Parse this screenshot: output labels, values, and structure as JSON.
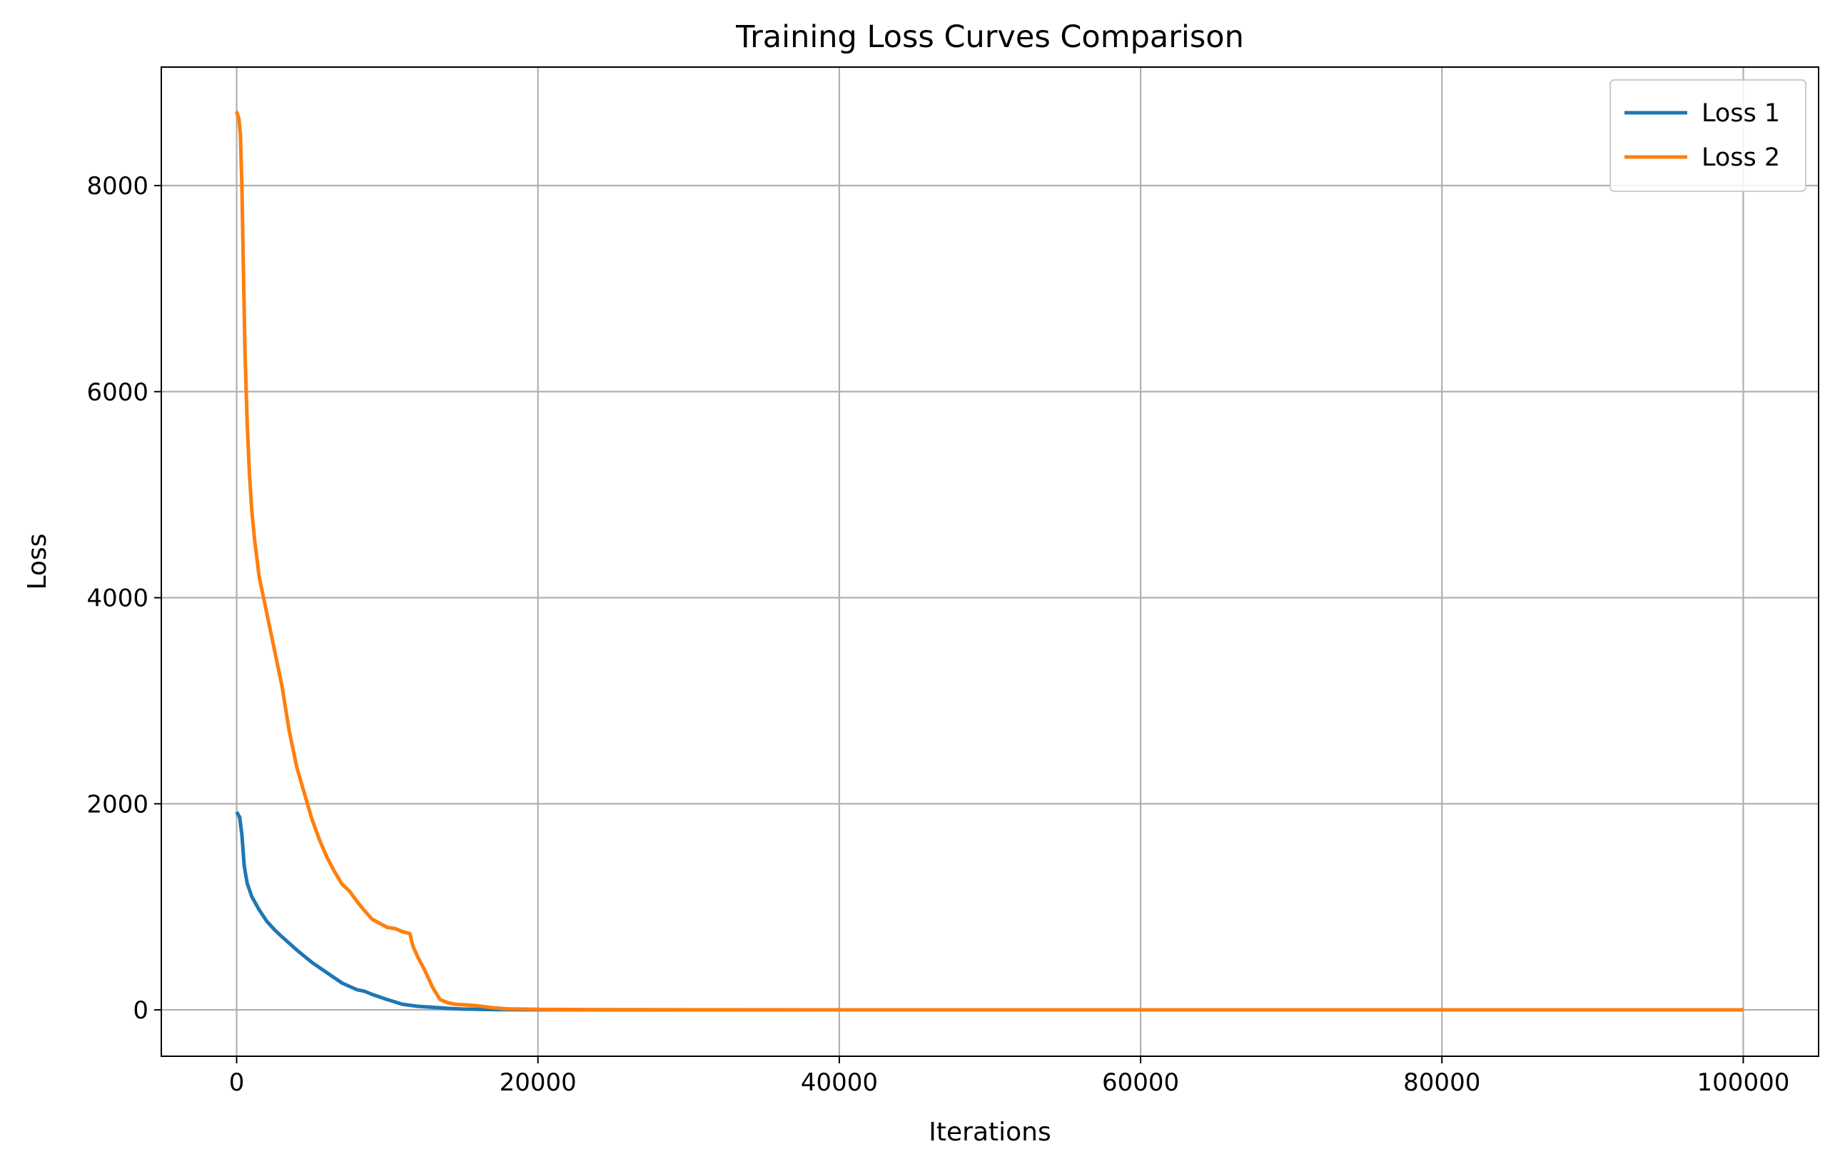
{
  "chart_data": {
    "type": "line",
    "title": "Training Loss Curves Comparison",
    "xlabel": "Iterations",
    "ylabel": "Loss",
    "xlim": [
      -5000,
      105000
    ],
    "ylim": [
      -450,
      9150
    ],
    "xticks": [
      0,
      20000,
      40000,
      60000,
      80000,
      100000
    ],
    "xtick_labels": [
      "0",
      "20000",
      "40000",
      "60000",
      "80000",
      "100000"
    ],
    "yticks": [
      0,
      2000,
      4000,
      6000,
      8000
    ],
    "ytick_labels": [
      "0",
      "2000",
      "4000",
      "6000",
      "8000"
    ],
    "grid": true,
    "legend_position": "top-right",
    "series": [
      {
        "name": "Loss 1",
        "color": "#1f77b4",
        "x": [
          0,
          200,
          350,
          500,
          700,
          1000,
          1500,
          2000,
          2500,
          3000,
          4000,
          5000,
          6000,
          7000,
          8000,
          8500,
          9000,
          10000,
          11000,
          12000,
          13000,
          14000,
          15000,
          16000,
          17000,
          18000,
          19000,
          20000,
          30000,
          40000,
          46000
        ],
        "y": [
          1920,
          1870,
          1700,
          1400,
          1230,
          1100,
          970,
          860,
          780,
          710,
          580,
          460,
          360,
          260,
          195,
          180,
          150,
          100,
          55,
          35,
          25,
          15,
          8,
          5,
          3,
          2,
          1,
          1,
          0,
          0,
          0
        ]
      },
      {
        "name": "Loss 2",
        "color": "#ff7f0e",
        "x": [
          0,
          150,
          250,
          350,
          450,
          550,
          700,
          850,
          1000,
          1200,
          1500,
          2000,
          2500,
          3000,
          3500,
          4000,
          4500,
          5000,
          5500,
          6000,
          6500,
          7000,
          7500,
          8000,
          8500,
          9000,
          9500,
          10000,
          10500,
          11000,
          11500,
          11700,
          12000,
          12500,
          13000,
          13500,
          14000,
          14500,
          15000,
          16000,
          17000,
          18000,
          20000,
          25000,
          30000,
          40000,
          50000,
          60000,
          70000,
          80000,
          90000,
          100000
        ],
        "y": [
          8720,
          8650,
          8500,
          8000,
          7200,
          6400,
          5700,
          5200,
          4850,
          4550,
          4200,
          3850,
          3500,
          3150,
          2700,
          2350,
          2100,
          1850,
          1650,
          1480,
          1340,
          1220,
          1150,
          1050,
          960,
          880,
          840,
          800,
          790,
          760,
          740,
          620,
          520,
          380,
          220,
          100,
          70,
          55,
          50,
          40,
          20,
          10,
          5,
          2,
          1,
          0,
          0,
          0,
          0,
          0,
          0,
          0
        ]
      }
    ]
  }
}
